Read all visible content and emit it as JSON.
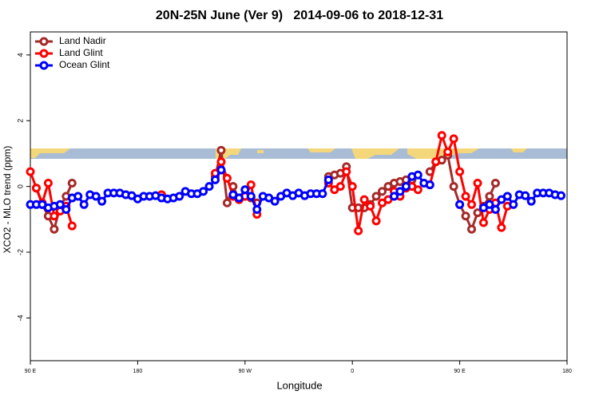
{
  "chart_data": {
    "type": "line",
    "title": "20N-25N June (Ver 9)   2014-09-06 to 2018-12-31",
    "xlabel": "Longitude",
    "ylabel": "XCO2 - MLO trend (ppm)",
    "x": [
      90,
      95,
      100,
      105,
      110,
      115,
      120,
      125,
      130,
      135,
      140,
      145,
      150,
      155,
      160,
      165,
      170,
      175,
      180,
      185,
      190,
      195,
      200,
      205,
      210,
      215,
      220,
      225,
      230,
      235,
      240,
      245,
      250,
      255,
      260,
      265,
      270,
      275,
      280,
      285,
      290,
      295,
      300,
      305,
      310,
      315,
      320,
      325,
      330,
      335,
      340,
      345,
      350,
      355,
      360,
      365,
      370,
      375,
      380,
      385,
      390,
      395,
      400,
      405,
      410,
      415,
      420,
      425,
      430,
      435,
      440,
      445,
      450,
      455,
      460,
      465,
      470,
      475,
      480,
      485,
      490,
      495,
      500,
      505,
      510,
      515,
      520,
      525,
      530,
      535,
      540
    ],
    "xlim": [
      90,
      540
    ],
    "xticks": [
      {
        "value": 90,
        "label": "90 E"
      },
      {
        "value": 180,
        "label": "180"
      },
      {
        "value": 270,
        "label": "90 W"
      },
      {
        "value": 360,
        "label": "0"
      },
      {
        "value": 450,
        "label": "90 E"
      },
      {
        "value": 540,
        "label": "180"
      }
    ],
    "ylim": [
      -5.3,
      4.7
    ],
    "yticks": [
      -4,
      -2,
      0,
      2,
      4
    ],
    "legend": "top-left",
    "series": [
      {
        "name": "Land Nadir",
        "color": "#a52a2a",
        "values": [
          null,
          -0.05,
          -0.55,
          -0.9,
          -1.3,
          -0.6,
          -0.3,
          0.1,
          null,
          null,
          null,
          null,
          null,
          null,
          null,
          null,
          null,
          null,
          null,
          null,
          null,
          null,
          null,
          null,
          null,
          null,
          null,
          null,
          null,
          null,
          null,
          0.3,
          1.1,
          -0.5,
          0.0,
          -0.4,
          -0.3,
          -0.35,
          -0.5,
          null,
          null,
          null,
          null,
          null,
          null,
          null,
          null,
          null,
          null,
          null,
          0.3,
          0.35,
          0.4,
          0.6,
          -0.65,
          -0.65,
          -0.65,
          -0.55,
          -0.3,
          -0.15,
          0.0,
          0.1,
          0.15,
          0.2,
          0.2,
          null,
          null,
          0.45,
          0.75,
          0.8,
          0.95,
          0.0,
          -0.55,
          -0.9,
          -1.3,
          -0.8,
          -0.6,
          -0.3,
          0.1,
          null,
          null,
          null,
          null,
          null,
          null,
          null,
          null,
          null,
          null,
          null,
          null
        ]
      },
      {
        "name": "Land Glint",
        "color": "#ff0000",
        "values": [
          0.45,
          -0.05,
          -0.5,
          0.1,
          -0.9,
          -0.75,
          -0.6,
          -1.2,
          null,
          null,
          null,
          null,
          null,
          null,
          null,
          null,
          null,
          null,
          null,
          null,
          null,
          null,
          -0.25,
          null,
          null,
          null,
          null,
          null,
          null,
          null,
          null,
          0.4,
          0.75,
          0.25,
          -0.3,
          -0.4,
          -0.3,
          0.05,
          -0.85,
          null,
          null,
          null,
          null,
          null,
          null,
          null,
          null,
          null,
          null,
          null,
          0.1,
          -0.1,
          0.0,
          0.45,
          0.0,
          -1.35,
          -0.4,
          -0.6,
          -1.05,
          -0.5,
          -0.4,
          -0.15,
          -0.3,
          -0.05,
          0.0,
          -0.1,
          null,
          0.05,
          0.75,
          1.55,
          1.05,
          1.45,
          0.45,
          -0.3,
          -0.55,
          0.1,
          -1.1,
          -0.7,
          -0.5,
          -1.25,
          -0.6,
          null,
          null,
          null,
          null,
          null,
          null,
          null,
          null,
          null,
          null
        ]
      },
      {
        "name": "Ocean Glint",
        "color": "#0000ff",
        "values": [
          -0.55,
          -0.55,
          -0.55,
          -0.65,
          -0.6,
          -0.55,
          -0.7,
          -0.35,
          -0.3,
          -0.55,
          -0.25,
          -0.3,
          -0.45,
          -0.2,
          -0.2,
          -0.2,
          -0.25,
          -0.28,
          -0.38,
          -0.3,
          -0.3,
          -0.28,
          -0.35,
          -0.38,
          -0.35,
          -0.3,
          -0.15,
          -0.22,
          -0.22,
          -0.15,
          0.0,
          0.2,
          0.5,
          null,
          -0.25,
          -0.35,
          -0.1,
          -0.3,
          -0.7,
          -0.3,
          -0.35,
          -0.45,
          -0.3,
          -0.2,
          -0.28,
          -0.2,
          -0.28,
          -0.22,
          -0.22,
          -0.22,
          0.2,
          null,
          null,
          null,
          null,
          null,
          null,
          null,
          null,
          null,
          null,
          -0.3,
          -0.15,
          0.0,
          0.3,
          0.35,
          0.1,
          0.05,
          null,
          null,
          null,
          null,
          -0.55,
          null,
          null,
          null,
          -0.65,
          -0.55,
          -0.7,
          -0.4,
          -0.3,
          -0.55,
          -0.25,
          -0.28,
          -0.45,
          -0.2,
          -0.2,
          -0.2,
          -0.25,
          -0.28,
          null
        ]
      }
    ]
  }
}
